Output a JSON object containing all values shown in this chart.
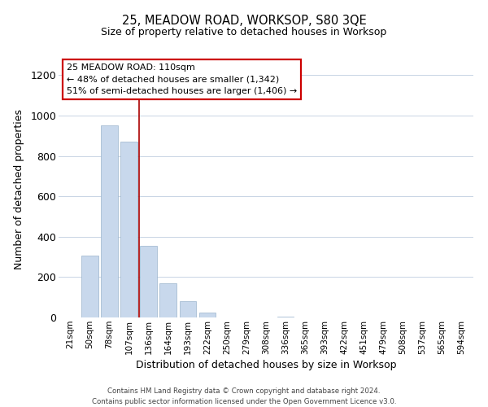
{
  "title_line1": "25, MEADOW ROAD, WORKSOP, S80 3QE",
  "title_line2": "Size of property relative to detached houses in Worksop",
  "xlabel": "Distribution of detached houses by size in Worksop",
  "ylabel": "Number of detached properties",
  "bar_color": "#c8d8ec",
  "bar_edge_color": "#9ab4cc",
  "categories": [
    "21sqm",
    "50sqm",
    "78sqm",
    "107sqm",
    "136sqm",
    "164sqm",
    "193sqm",
    "222sqm",
    "250sqm",
    "279sqm",
    "308sqm",
    "336sqm",
    "365sqm",
    "393sqm",
    "422sqm",
    "451sqm",
    "479sqm",
    "508sqm",
    "537sqm",
    "565sqm",
    "594sqm"
  ],
  "values": [
    0,
    305,
    950,
    870,
    355,
    170,
    80,
    25,
    0,
    0,
    0,
    5,
    0,
    0,
    0,
    0,
    0,
    0,
    0,
    0,
    0
  ],
  "ylim": [
    0,
    1270
  ],
  "yticks": [
    0,
    200,
    400,
    600,
    800,
    1000,
    1200
  ],
  "annotation_title": "25 MEADOW ROAD: 110sqm",
  "annotation_line2": "← 48% of detached houses are smaller (1,342)",
  "annotation_line3": "51% of semi-detached houses are larger (1,406) →",
  "annotation_box_color": "#ffffff",
  "annotation_box_edge_color": "#cc0000",
  "property_line_x": 3.5,
  "property_line_color": "#aa0000",
  "footer_line1": "Contains HM Land Registry data © Crown copyright and database right 2024.",
  "footer_line2": "Contains public sector information licensed under the Open Government Licence v3.0.",
  "background_color": "#ffffff",
  "grid_color": "#c8d4e4"
}
